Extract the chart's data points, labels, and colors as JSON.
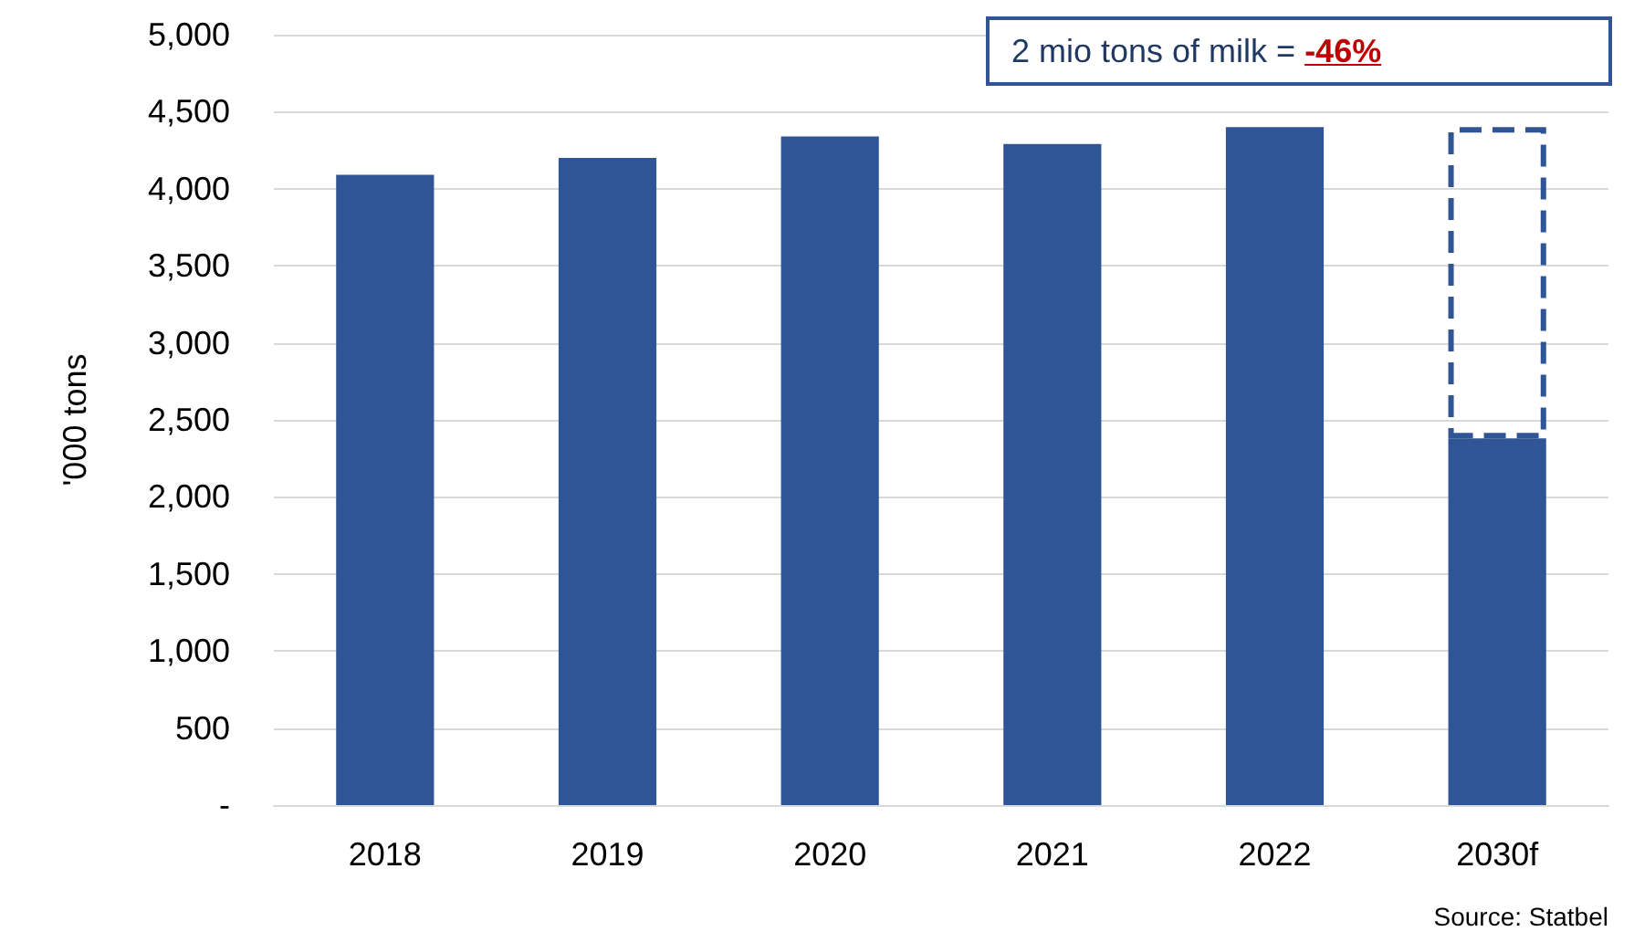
{
  "chart_data": {
    "type": "bar",
    "ylabel": "'000 tons",
    "categories": [
      "2018",
      "2019",
      "2020",
      "2021",
      "2022",
      "2030f"
    ],
    "stacked": true,
    "series": [
      {
        "color": "#2f5597",
        "values": [
          4090,
          4200,
          4340,
          4290,
          4400,
          2380
        ]
      },
      {
        "color": "#2f5597",
        "line_style": "dashed",
        "values": [
          null,
          null,
          null,
          null,
          null,
          2020
        ]
      }
    ],
    "ylim": [
      0,
      5000
    ],
    "yticks": [
      {
        "value": 0,
        "label": "-"
      },
      {
        "value": 500,
        "label": "500"
      },
      {
        "value": 1000,
        "label": "1,000"
      },
      {
        "value": 1500,
        "label": "1,500"
      },
      {
        "value": 2000,
        "label": "2,000"
      },
      {
        "value": 2500,
        "label": "2,500"
      },
      {
        "value": 3000,
        "label": "3,000"
      },
      {
        "value": 3500,
        "label": "3,500"
      },
      {
        "value": 4000,
        "label": "4,000"
      },
      {
        "value": 4500,
        "label": "4,500"
      },
      {
        "value": 5000,
        "label": "5,000"
      }
    ],
    "grid": "y",
    "annotations": [
      "2 mio tons of milk = -46%",
      "Source: Statbel"
    ]
  }
}
